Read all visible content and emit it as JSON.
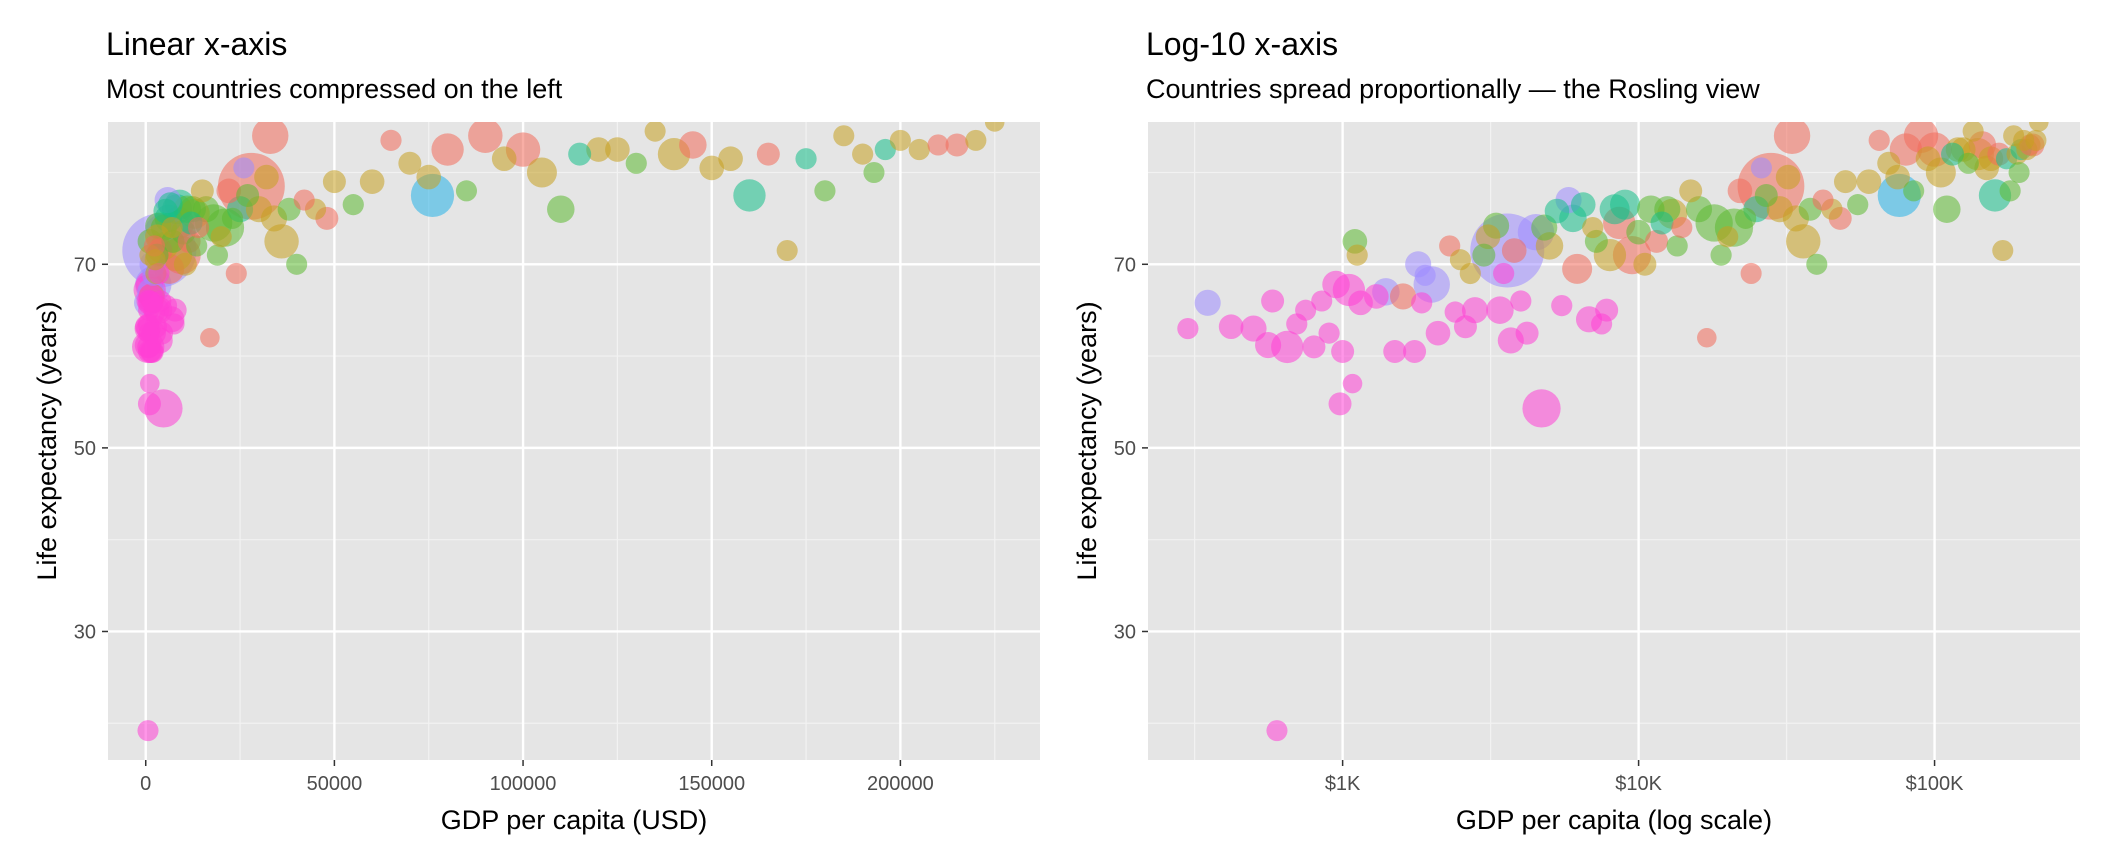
{
  "chart_data": [
    {
      "type": "scatter",
      "title": "Linear x-axis",
      "subtitle": "Most countries compressed on the left",
      "xlabel": "GDP per capita (USD)",
      "ylabel": "Life expectancy (years)",
      "x_scale": "linear",
      "xlim": [
        -10000,
        237000
      ],
      "ylim": [
        16,
        85.5
      ],
      "x_ticks": [
        0,
        50000,
        100000,
        150000,
        200000
      ],
      "x_tick_labels": [
        "0",
        "50000",
        "100000",
        "150000",
        "200000"
      ],
      "y_ticks": [
        30,
        50,
        70
      ],
      "y_tick_labels": [
        "30",
        "50",
        "70"
      ],
      "grid": true,
      "legend": "none"
    },
    {
      "type": "scatter",
      "title": "Log-10 x-axis",
      "subtitle": "Countries spread proportionally — the Rosling view",
      "xlabel": "GDP per capita (log scale)",
      "ylabel": "Life expectancy (years)",
      "x_scale": "log10",
      "xlim": [
        220,
        310000
      ],
      "ylim": [
        16,
        85.5
      ],
      "x_ticks": [
        1000,
        10000,
        100000
      ],
      "x_tick_labels": [
        "$1K",
        "$10K",
        "$100K"
      ],
      "y_ticks": [
        30,
        50,
        70
      ],
      "y_tick_labels": [
        "30",
        "50",
        "70"
      ],
      "grid": true,
      "legend": "none"
    }
  ],
  "points": [
    {
      "gdp": 300,
      "life": 63,
      "size": 0.2,
      "group": "magenta"
    },
    {
      "gdp": 350,
      "life": 65.8,
      "size": 0.35,
      "group": "purple"
    },
    {
      "gdp": 420,
      "life": 63.2,
      "size": 0.3,
      "group": "magenta"
    },
    {
      "gdp": 500,
      "life": 63.0,
      "size": 0.35,
      "group": "magenta"
    },
    {
      "gdp": 560,
      "life": 61.2,
      "size": 0.35,
      "group": "magenta"
    },
    {
      "gdp": 580,
      "life": 66.0,
      "size": 0.25,
      "group": "magenta"
    },
    {
      "gdp": 600,
      "life": 19.2,
      "size": 0.15,
      "group": "magenta"
    },
    {
      "gdp": 650,
      "life": 61.0,
      "size": 0.6,
      "group": "magenta"
    },
    {
      "gdp": 700,
      "life": 63.5,
      "size": 0.2,
      "group": "magenta"
    },
    {
      "gdp": 750,
      "life": 65.0,
      "size": 0.15,
      "group": "magenta"
    },
    {
      "gdp": 800,
      "life": 61.0,
      "size": 0.25,
      "group": "magenta"
    },
    {
      "gdp": 850,
      "life": 66.0,
      "size": 0.15,
      "group": "magenta"
    },
    {
      "gdp": 900,
      "life": 62.5,
      "size": 0.2,
      "group": "magenta"
    },
    {
      "gdp": 950,
      "life": 67.8,
      "size": 0.4,
      "group": "magenta"
    },
    {
      "gdp": 980,
      "life": 54.8,
      "size": 0.25,
      "group": "magenta"
    },
    {
      "gdp": 1000,
      "life": 60.5,
      "size": 0.25,
      "group": "magenta"
    },
    {
      "gdp": 1050,
      "life": 67.2,
      "size": 0.6,
      "group": "magenta"
    },
    {
      "gdp": 1080,
      "life": 57.0,
      "size": 0.12,
      "group": "magenta"
    },
    {
      "gdp": 1100,
      "life": 72.5,
      "size": 0.3,
      "group": "green"
    },
    {
      "gdp": 1120,
      "life": 71.0,
      "size": 0.2,
      "group": "olive"
    },
    {
      "gdp": 1150,
      "life": 65.8,
      "size": 0.3,
      "group": "magenta"
    },
    {
      "gdp": 1300,
      "life": 66.5,
      "size": 0.3,
      "group": "magenta"
    },
    {
      "gdp": 1400,
      "life": 67.0,
      "size": 0.4,
      "group": "purple"
    },
    {
      "gdp": 1500,
      "life": 60.5,
      "size": 0.25,
      "group": "magenta"
    },
    {
      "gdp": 1600,
      "life": 66.5,
      "size": 0.35,
      "group": "red"
    },
    {
      "gdp": 1750,
      "life": 60.5,
      "size": 0.25,
      "group": "magenta"
    },
    {
      "gdp": 1800,
      "life": 70.0,
      "size": 0.35,
      "group": "purple"
    },
    {
      "gdp": 1850,
      "life": 65.8,
      "size": 0.2,
      "group": "magenta"
    },
    {
      "gdp": 1900,
      "life": 68.8,
      "size": 0.2,
      "group": "purple"
    },
    {
      "gdp": 2000,
      "life": 67.8,
      "size": 0.8,
      "group": "purple"
    },
    {
      "gdp": 2100,
      "life": 62.5,
      "size": 0.3,
      "group": "magenta"
    },
    {
      "gdp": 2300,
      "life": 72.0,
      "size": 0.2,
      "group": "red"
    },
    {
      "gdp": 2400,
      "life": 64.8,
      "size": 0.2,
      "group": "magenta"
    },
    {
      "gdp": 2500,
      "life": 70.5,
      "size": 0.15,
      "group": "olive"
    },
    {
      "gdp": 2600,
      "life": 63.2,
      "size": 0.25,
      "group": "magenta"
    },
    {
      "gdp": 2700,
      "life": 69.0,
      "size": 0.2,
      "group": "olive"
    },
    {
      "gdp": 2800,
      "life": 65.0,
      "size": 0.35,
      "group": "magenta"
    },
    {
      "gdp": 3000,
      "life": 71.0,
      "size": 0.25,
      "group": "green"
    },
    {
      "gdp": 3100,
      "life": 73.0,
      "size": 0.3,
      "group": "olive"
    },
    {
      "gdp": 3300,
      "life": 74.2,
      "size": 0.35,
      "group": "green"
    },
    {
      "gdp": 3400,
      "life": 65.0,
      "size": 0.4,
      "group": "magenta"
    },
    {
      "gdp": 3500,
      "life": 69.0,
      "size": 0.2,
      "group": "magenta"
    },
    {
      "gdp": 3600,
      "life": 71.5,
      "size": 4.0,
      "group": "purple"
    },
    {
      "gdp": 3700,
      "life": 61.7,
      "size": 0.35,
      "group": "magenta"
    },
    {
      "gdp": 3800,
      "life": 71.5,
      "size": 0.3,
      "group": "red"
    },
    {
      "gdp": 4000,
      "life": 66.0,
      "size": 0.2,
      "group": "magenta"
    },
    {
      "gdp": 4200,
      "life": 62.5,
      "size": 0.25,
      "group": "magenta"
    },
    {
      "gdp": 4500,
      "life": 73.5,
      "size": 0.8,
      "group": "purple"
    },
    {
      "gdp": 4700,
      "life": 54.3,
      "size": 0.9,
      "group": "magenta"
    },
    {
      "gdp": 4800,
      "life": 74.0,
      "size": 0.35,
      "group": "green"
    },
    {
      "gdp": 5000,
      "life": 72.0,
      "size": 0.4,
      "group": "olive"
    },
    {
      "gdp": 5300,
      "life": 75.8,
      "size": 0.3,
      "group": "teal"
    },
    {
      "gdp": 5500,
      "life": 65.5,
      "size": 0.2,
      "group": "magenta"
    },
    {
      "gdp": 5800,
      "life": 77.0,
      "size": 0.35,
      "group": "purple"
    },
    {
      "gdp": 6000,
      "life": 75.0,
      "size": 0.4,
      "group": "teal"
    },
    {
      "gdp": 6200,
      "life": 69.5,
      "size": 0.5,
      "group": "red"
    },
    {
      "gdp": 6500,
      "life": 76.5,
      "size": 0.3,
      "group": "teal"
    },
    {
      "gdp": 6800,
      "life": 64.0,
      "size": 0.35,
      "group": "magenta"
    },
    {
      "gdp": 7000,
      "life": 74.0,
      "size": 0.2,
      "group": "olive"
    },
    {
      "gdp": 7200,
      "life": 72.5,
      "size": 0.25,
      "group": "green"
    },
    {
      "gdp": 7500,
      "life": 63.5,
      "size": 0.15,
      "group": "magenta"
    },
    {
      "gdp": 7800,
      "life": 65.0,
      "size": 0.25,
      "group": "magenta"
    },
    {
      "gdp": 8000,
      "life": 71.0,
      "size": 0.6,
      "group": "olive"
    },
    {
      "gdp": 8300,
      "life": 76.0,
      "size": 0.5,
      "group": "teal"
    },
    {
      "gdp": 8600,
      "life": 74.5,
      "size": 0.6,
      "group": "red"
    },
    {
      "gdp": 9000,
      "life": 76.5,
      "size": 0.5,
      "group": "teal"
    },
    {
      "gdp": 9500,
      "life": 71.0,
      "size": 0.9,
      "group": "red"
    },
    {
      "gdp": 10000,
      "life": 73.5,
      "size": 0.3,
      "group": "green"
    },
    {
      "gdp": 10500,
      "life": 70.0,
      "size": 0.25,
      "group": "olive"
    },
    {
      "gdp": 11000,
      "life": 76.0,
      "size": 0.4,
      "group": "green"
    },
    {
      "gdp": 11500,
      "life": 72.5,
      "size": 0.25,
      "group": "red"
    },
    {
      "gdp": 12000,
      "life": 74.5,
      "size": 0.25,
      "group": "teal"
    },
    {
      "gdp": 12500,
      "life": 76.0,
      "size": 0.35,
      "group": "green"
    },
    {
      "gdp": 13000,
      "life": 75.5,
      "size": 0.5,
      "group": "olive"
    },
    {
      "gdp": 13500,
      "life": 72.0,
      "size": 0.2,
      "group": "green"
    },
    {
      "gdp": 14000,
      "life": 74.0,
      "size": 0.15,
      "group": "red"
    },
    {
      "gdp": 15000,
      "life": 78.0,
      "size": 0.25,
      "group": "olive"
    },
    {
      "gdp": 16000,
      "life": 76.0,
      "size": 0.35,
      "group": "green"
    },
    {
      "gdp": 17000,
      "life": 62.0,
      "size": 0.12,
      "group": "red"
    },
    {
      "gdp": 18000,
      "life": 74.5,
      "size": 0.85,
      "group": "green"
    },
    {
      "gdp": 19000,
      "life": 71.0,
      "size": 0.2,
      "group": "green"
    },
    {
      "gdp": 20000,
      "life": 73.0,
      "size": 0.2,
      "group": "olive"
    },
    {
      "gdp": 21000,
      "life": 74.0,
      "size": 0.9,
      "group": "green"
    },
    {
      "gdp": 22000,
      "life": 78.0,
      "size": 0.3,
      "group": "red"
    },
    {
      "gdp": 23000,
      "life": 75.0,
      "size": 0.2,
      "group": "green"
    },
    {
      "gdp": 24000,
      "life": 69.0,
      "size": 0.15,
      "group": "red"
    },
    {
      "gdp": 25000,
      "life": 76.0,
      "size": 0.35,
      "group": "teal"
    },
    {
      "gdp": 26000,
      "life": 80.5,
      "size": 0.15,
      "group": "purple"
    },
    {
      "gdp": 27000,
      "life": 77.5,
      "size": 0.25,
      "group": "green"
    },
    {
      "gdp": 28000,
      "life": 78.5,
      "size": 3.2,
      "group": "red"
    },
    {
      "gdp": 30000,
      "life": 76.0,
      "size": 0.35,
      "group": "olive"
    },
    {
      "gdp": 32000,
      "life": 79.5,
      "size": 0.3,
      "group": "olive"
    },
    {
      "gdp": 34000,
      "life": 75.0,
      "size": 0.35,
      "group": "olive"
    },
    {
      "gdp": 36000,
      "life": 72.5,
      "size": 0.7,
      "group": "olive"
    },
    {
      "gdp": 38000,
      "life": 76.0,
      "size": 0.25,
      "group": "green"
    },
    {
      "gdp": 40000,
      "life": 70.0,
      "size": 0.15,
      "group": "green"
    },
    {
      "gdp": 42000,
      "life": 77.0,
      "size": 0.15,
      "group": "red"
    },
    {
      "gdp": 45000,
      "life": 76.0,
      "size": 0.2,
      "group": "olive"
    },
    {
      "gdp": 48000,
      "life": 75.0,
      "size": 0.25,
      "group": "red"
    },
    {
      "gdp": 50000,
      "life": 79.0,
      "size": 0.25,
      "group": "olive"
    },
    {
      "gdp": 55000,
      "life": 76.5,
      "size": 0.2,
      "group": "green"
    },
    {
      "gdp": 60000,
      "life": 79.0,
      "size": 0.3,
      "group": "olive"
    },
    {
      "gdp": 65000,
      "life": 83.5,
      "size": 0.2,
      "group": "red"
    },
    {
      "gdp": 70000,
      "life": 81.0,
      "size": 0.25,
      "group": "olive"
    },
    {
      "gdp": 75000,
      "life": 79.5,
      "size": 0.3,
      "group": "olive"
    },
    {
      "gdp": 80000,
      "life": 82.5,
      "size": 0.6,
      "group": "red"
    },
    {
      "gdp": 85000,
      "life": 78.0,
      "size": 0.15,
      "group": "green"
    },
    {
      "gdp": 90000,
      "life": 84.0,
      "size": 0.7,
      "group": "red"
    },
    {
      "gdp": 95000,
      "life": 81.5,
      "size": 0.3,
      "group": "olive"
    },
    {
      "gdp": 100000,
      "life": 82.5,
      "size": 0.7,
      "group": "red"
    },
    {
      "gdp": 105000,
      "life": 80.0,
      "size": 0.5,
      "group": "olive"
    },
    {
      "gdp": 110000,
      "life": 76.0,
      "size": 0.4,
      "group": "green"
    },
    {
      "gdp": 115000,
      "life": 82.0,
      "size": 0.25,
      "group": "teal"
    },
    {
      "gdp": 120000,
      "life": 82.5,
      "size": 0.3,
      "group": "olive"
    },
    {
      "gdp": 125000,
      "life": 82.5,
      "size": 0.3,
      "group": "olive"
    },
    {
      "gdp": 130000,
      "life": 81.0,
      "size": 0.2,
      "group": "green"
    },
    {
      "gdp": 135000,
      "life": 84.5,
      "size": 0.15,
      "group": "olive"
    },
    {
      "gdp": 140000,
      "life": 82.0,
      "size": 0.6,
      "group": "olive"
    },
    {
      "gdp": 145000,
      "life": 83.0,
      "size": 0.4,
      "group": "red"
    },
    {
      "gdp": 150000,
      "life": 80.5,
      "size": 0.3,
      "group": "olive"
    },
    {
      "gdp": 155000,
      "life": 81.5,
      "size": 0.3,
      "group": "olive"
    },
    {
      "gdp": 160000,
      "life": 77.5,
      "size": 0.6,
      "group": "teal"
    },
    {
      "gdp": 165000,
      "life": 82.0,
      "size": 0.25,
      "group": "red"
    },
    {
      "gdp": 170000,
      "life": 71.5,
      "size": 0.15,
      "group": "olive"
    },
    {
      "gdp": 175000,
      "life": 81.5,
      "size": 0.2,
      "group": "teal"
    },
    {
      "gdp": 180000,
      "life": 78.0,
      "size": 0.2,
      "group": "green"
    },
    {
      "gdp": 185000,
      "life": 84.0,
      "size": 0.15,
      "group": "olive"
    },
    {
      "gdp": 190000,
      "life": 82.0,
      "size": 0.2,
      "group": "olive"
    },
    {
      "gdp": 193000,
      "life": 80.0,
      "size": 0.15,
      "group": "green"
    },
    {
      "gdp": 196000,
      "life": 82.5,
      "size": 0.2,
      "group": "teal"
    },
    {
      "gdp": 200000,
      "life": 83.5,
      "size": 0.15,
      "group": "olive"
    },
    {
      "gdp": 205000,
      "life": 82.5,
      "size": 0.2,
      "group": "olive"
    },
    {
      "gdp": 210000,
      "life": 83.0,
      "size": 0.2,
      "group": "red"
    },
    {
      "gdp": 215000,
      "life": 83.0,
      "size": 0.25,
      "group": "red"
    },
    {
      "gdp": 220000,
      "life": 83.5,
      "size": 0.15,
      "group": "olive"
    },
    {
      "gdp": 225000,
      "life": 85.5,
      "size": 0.12,
      "group": "olive"
    },
    {
      "gdp": 76000,
      "life": 77.5,
      "size": 1.2,
      "group": "blue"
    },
    {
      "gdp": 33000,
      "life": 84.0,
      "size": 0.8,
      "group": "red"
    }
  ],
  "colors": {
    "magenta": "#ff3fd6",
    "purple": "#9e8cff",
    "blue": "#27b2e8",
    "teal": "#16bf8a",
    "green": "#5db932",
    "olive": "#c7a020",
    "red": "#f26b5b",
    "panel_bg": "#e5e5e5",
    "grid": "#ffffff",
    "tick_text": "#4d4d4d"
  }
}
